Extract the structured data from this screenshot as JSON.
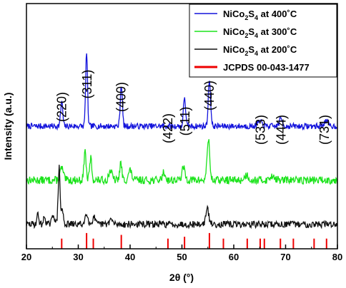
{
  "chart_data": {
    "type": "line",
    "xlabel": "2θ (°)",
    "ylabel": "Intensity (a.u.)",
    "xlim": [
      20,
      80
    ],
    "x_ticks": [
      20,
      30,
      40,
      50,
      60,
      70,
      80
    ],
    "y_ticks_shown": false,
    "legend_position": "top-right",
    "series": [
      {
        "name": "NiCo2S4 at 400˚C",
        "legend_parts": [
          "NiCo",
          "2",
          "S",
          "4",
          " at 400˚C"
        ],
        "color": "#1414dc",
        "baseline": 0.5,
        "noise": 0.012,
        "seed": 7,
        "peaks": [
          [
            26.8,
            0.1,
            0.2
          ],
          [
            31.6,
            0.3,
            0.18
          ],
          [
            38.3,
            0.17,
            0.2
          ],
          [
            50.5,
            0.12,
            0.2
          ],
          [
            55.3,
            0.19,
            0.22
          ],
          [
            65.0,
            0.02,
            0.4
          ],
          [
            69.1,
            0.03,
            0.3
          ],
          [
            77.8,
            0.02,
            0.4
          ]
        ]
      },
      {
        "name": "NiCo2S4 at 300˚C",
        "legend_parts": [
          "NiCo",
          "2",
          "S",
          "4",
          " at 300˚C"
        ],
        "color": "#1be31b",
        "baseline": 0.28,
        "noise": 0.016,
        "seed": 13,
        "peaks": [
          [
            26.8,
            0.05,
            0.3
          ],
          [
            31.3,
            0.12,
            0.2
          ],
          [
            32.4,
            0.09,
            0.2
          ],
          [
            36.2,
            0.04,
            0.3
          ],
          [
            38.2,
            0.07,
            0.2
          ],
          [
            40.0,
            0.04,
            0.3
          ],
          [
            46.5,
            0.03,
            0.3
          ],
          [
            50.3,
            0.05,
            0.3
          ],
          [
            55.1,
            0.17,
            0.25
          ],
          [
            62.5,
            0.02,
            0.4
          ],
          [
            67.5,
            0.02,
            0.4
          ]
        ]
      },
      {
        "name": "NiCo2S4 at 200˚C",
        "legend_parts": [
          "NiCo",
          "2",
          "S",
          "4",
          " at 200˚C"
        ],
        "color": "#111111",
        "baseline": 0.1,
        "noise": 0.014,
        "seed": 29,
        "peaks": [
          [
            22.2,
            0.04,
            0.2
          ],
          [
            23.5,
            0.03,
            0.2
          ],
          [
            25.2,
            0.04,
            0.25
          ],
          [
            26.3,
            0.23,
            0.18
          ],
          [
            26.9,
            0.06,
            0.2
          ],
          [
            31.6,
            0.05,
            0.25
          ],
          [
            33.0,
            0.03,
            0.25
          ],
          [
            36.3,
            0.02,
            0.3
          ],
          [
            54.9,
            0.06,
            0.3
          ]
        ]
      }
    ],
    "reference": {
      "name": "JCPDS 00-043-1477",
      "color": "#ee0000",
      "lines": [
        [
          26.8,
          0.55
        ],
        [
          31.6,
          0.85
        ],
        [
          32.9,
          0.55
        ],
        [
          38.3,
          0.75
        ],
        [
          47.3,
          0.55
        ],
        [
          50.5,
          0.65
        ],
        [
          55.3,
          0.85
        ],
        [
          58.0,
          0.55
        ],
        [
          62.6,
          0.55
        ],
        [
          65.1,
          0.55
        ],
        [
          65.9,
          0.55
        ],
        [
          69.0,
          0.55
        ],
        [
          71.5,
          0.55
        ],
        [
          75.5,
          0.55
        ],
        [
          77.9,
          0.55
        ]
      ]
    },
    "annotations": [
      {
        "text": "(220)",
        "x": 26.8
      },
      {
        "text": "(311)",
        "x": 31.7
      },
      {
        "text": "(400)",
        "x": 38.3
      },
      {
        "text": "(422)",
        "x": 47.3
      },
      {
        "text": "(511)",
        "x": 50.6
      },
      {
        "text": "(440)",
        "x": 55.3
      },
      {
        "text": "(533)",
        "x": 65.2
      },
      {
        "text": "(444)",
        "x": 69.2
      },
      {
        "text": "(731)",
        "x": 77.5
      }
    ]
  }
}
